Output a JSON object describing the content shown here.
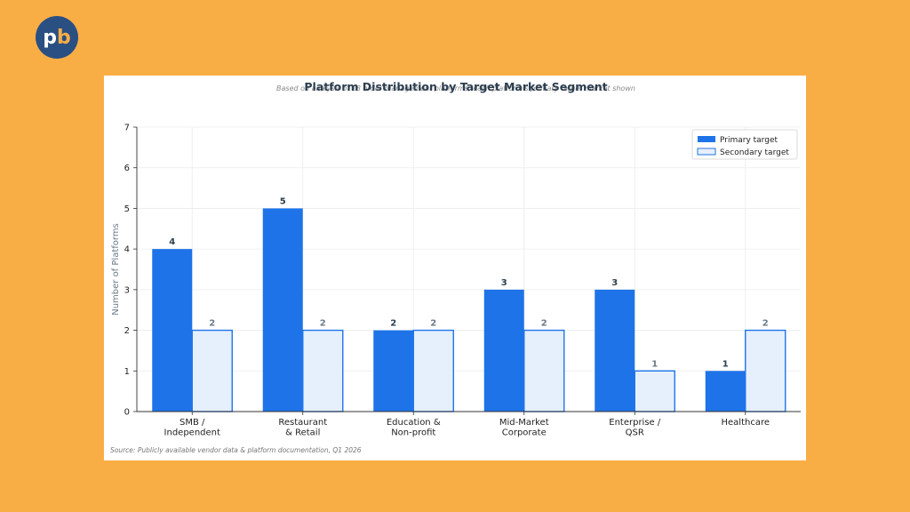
{
  "brand": {
    "logo_text_p": "p",
    "logo_text_b": "b",
    "logo_color": "#2A4F83",
    "accent_color": "#F9AE45"
  },
  "chart_data": {
    "type": "bar",
    "title": "Platform Distribution by Target Market Segment",
    "subtitle": "Based on analysis of 18 order management platforms; each platform's primary target market shown",
    "xlabel": "",
    "ylabel": "Number of Platforms",
    "ylim": [
      0,
      7
    ],
    "yticks": [
      0,
      1,
      2,
      3,
      4,
      5,
      6,
      7
    ],
    "grid": true,
    "legend_position": "top-right",
    "categories": [
      [
        "SMB /",
        "Independent"
      ],
      [
        "Restaurant",
        "& Retail"
      ],
      [
        "Education &",
        "Non-profit"
      ],
      [
        "Mid-Market",
        "Corporate"
      ],
      [
        "Enterprise /",
        "QSR"
      ],
      [
        "Healthcare"
      ]
    ],
    "series": [
      {
        "name": "Primary target",
        "values": [
          4,
          5,
          2,
          3,
          3,
          1
        ],
        "color": "#1E73E8"
      },
      {
        "name": "Secondary target",
        "values": [
          2,
          2,
          2,
          2,
          1,
          2
        ],
        "color": "#E6F0FC",
        "stroke": "#1E73E8"
      }
    ],
    "source": "Source: Publicly available vendor data & platform documentation, Q1 2026"
  }
}
